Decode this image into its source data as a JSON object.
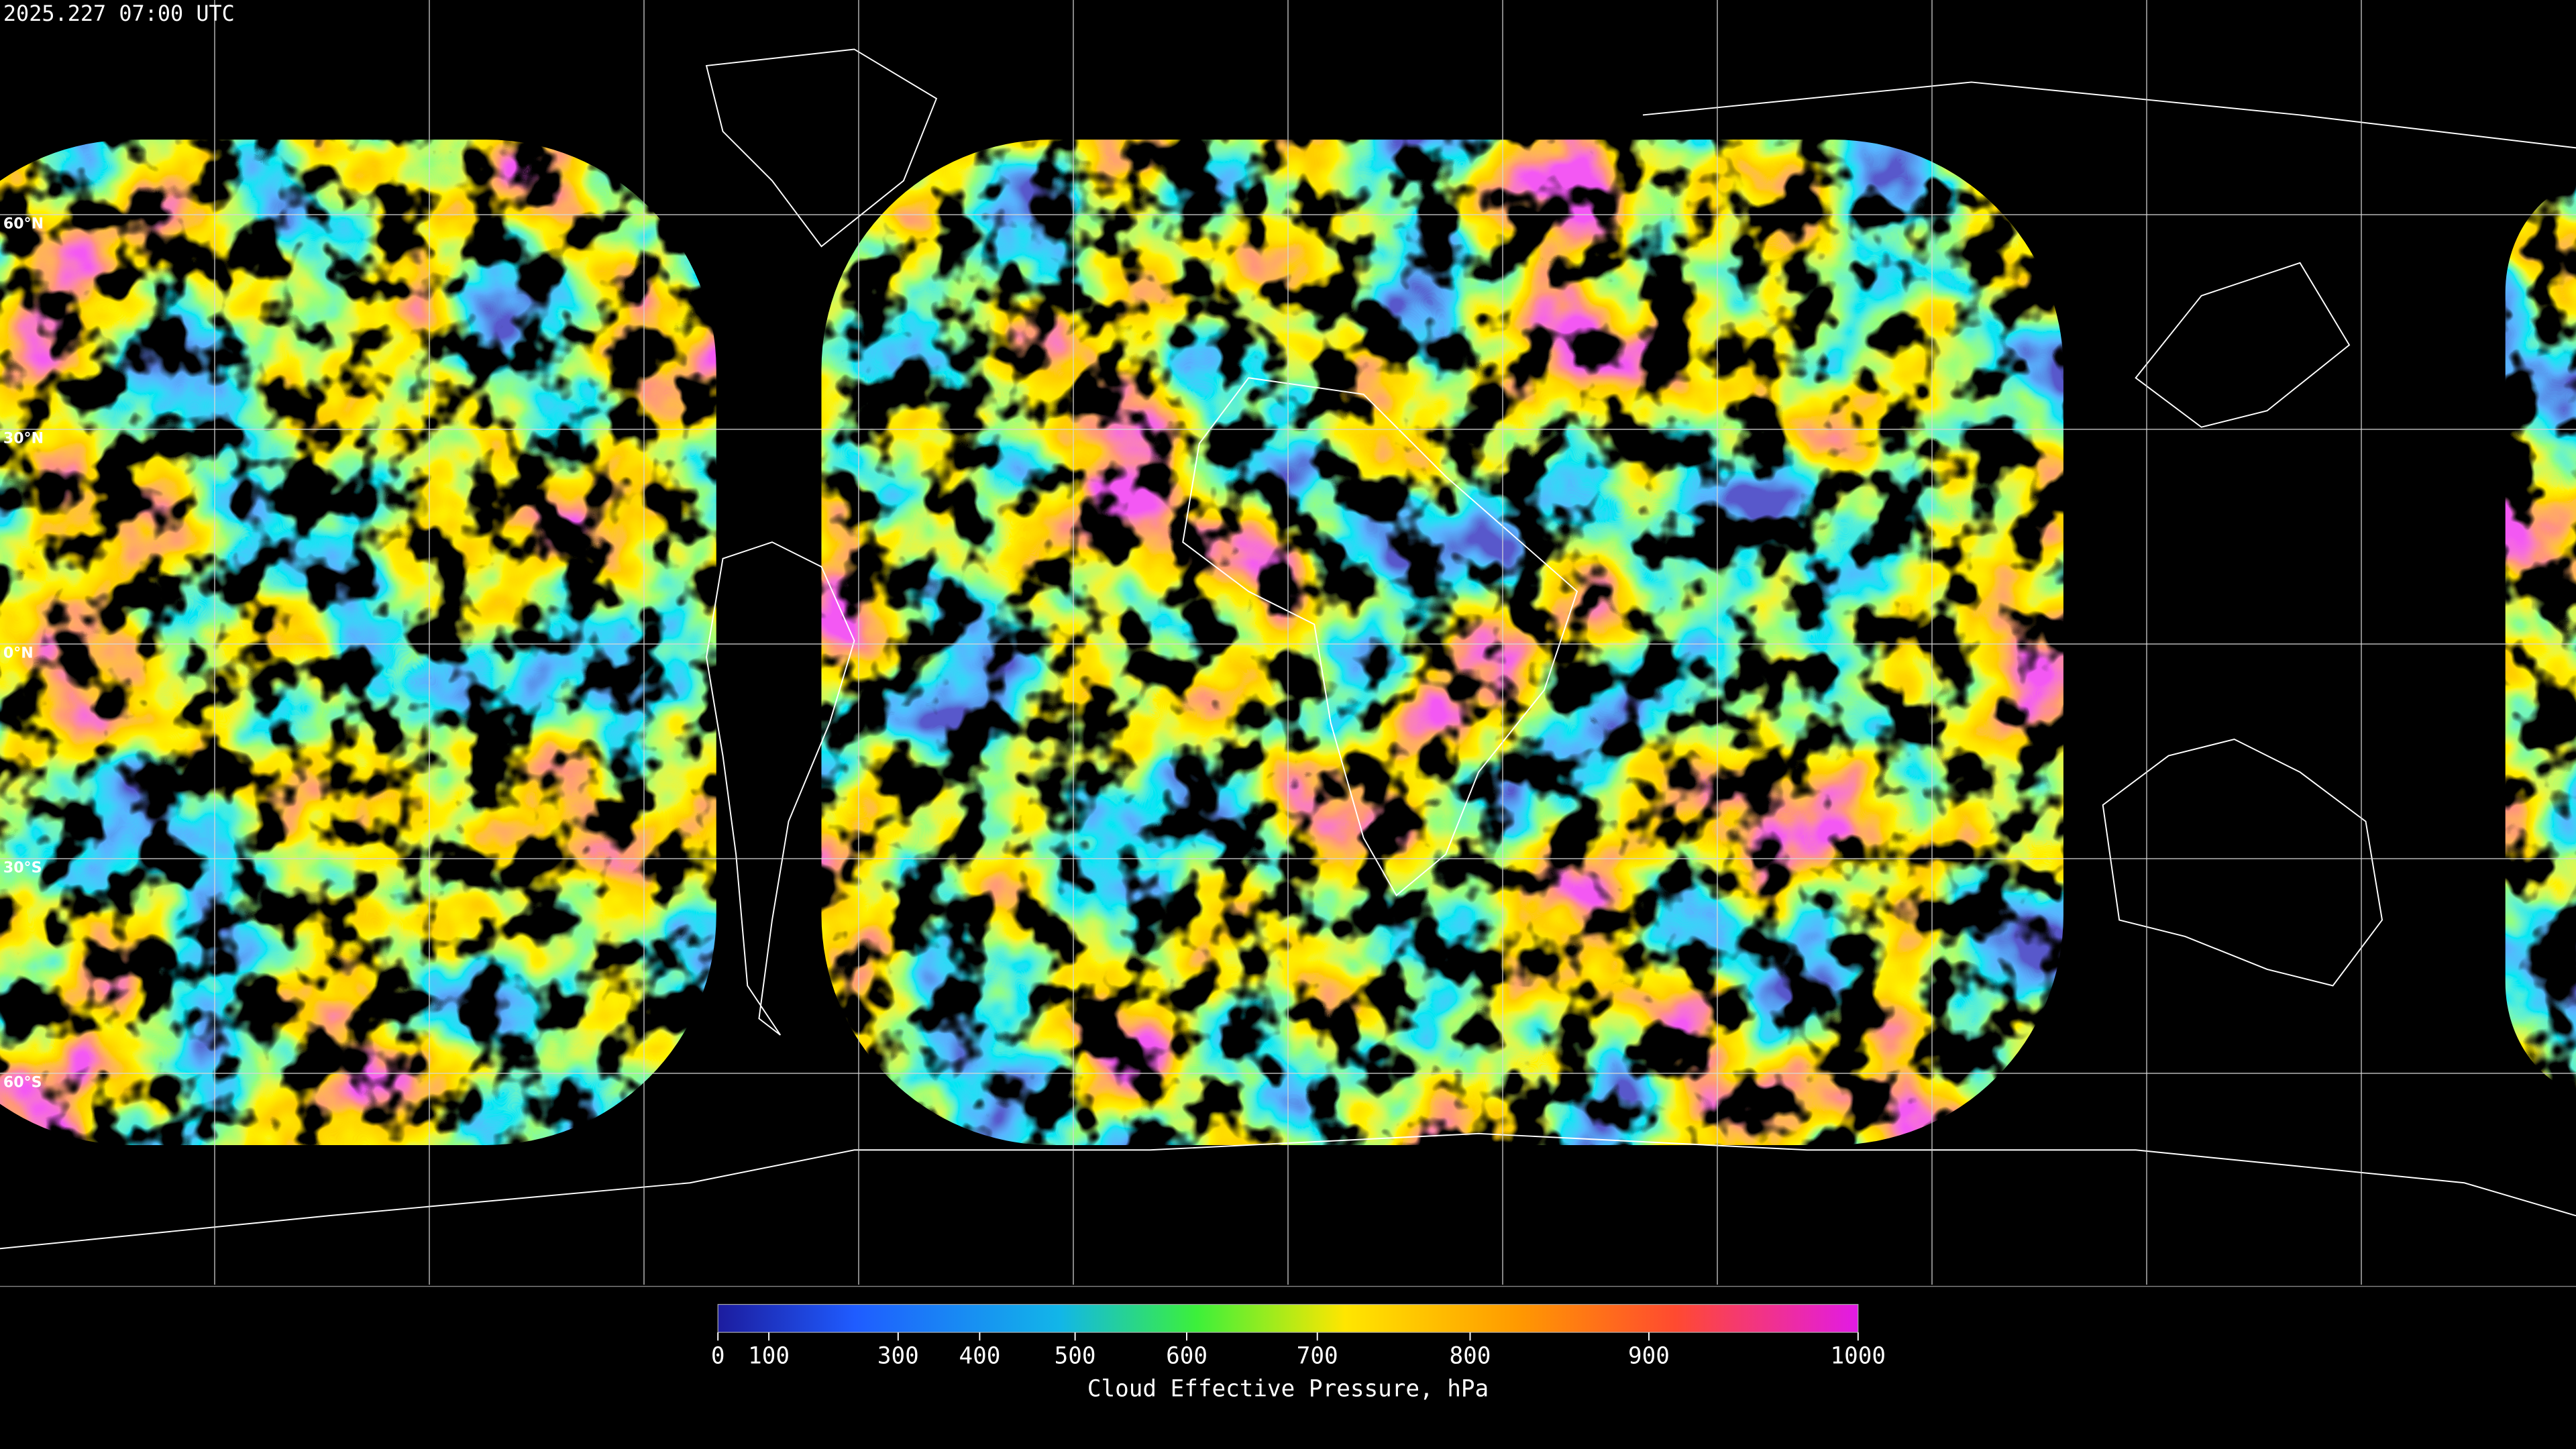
{
  "timestamp": "2025.227 07:00 UTC",
  "map": {
    "lat_labels": [
      "60°N",
      "30°N",
      "0°N",
      "30°S",
      "60°S"
    ]
  },
  "colorbar": {
    "label": "Cloud Effective Pressure, hPa",
    "range": [
      0,
      1000
    ],
    "scale": "exp",
    "ticks": [
      0,
      100,
      300,
      400,
      500,
      600,
      700,
      800,
      900,
      1000
    ]
  }
}
